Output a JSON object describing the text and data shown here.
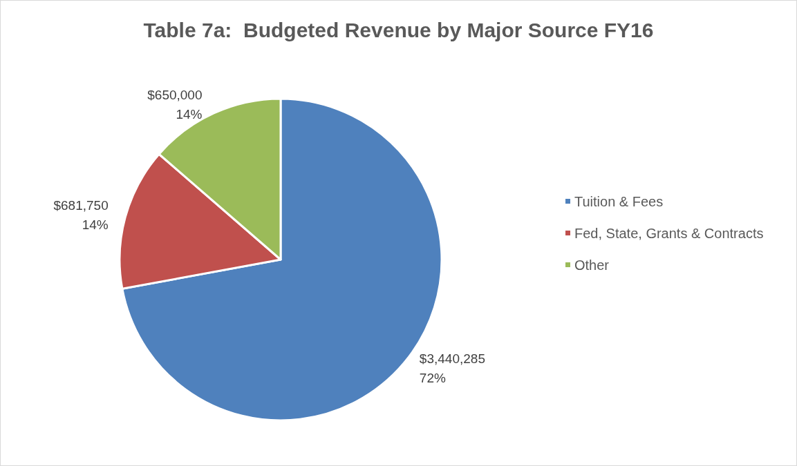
{
  "chart_data": {
    "type": "pie",
    "title": "Table 7a:  Budgeted Revenue by Major Source FY16",
    "categories": [
      "Tuition & Fees",
      "Fed, State, Grants & Contracts",
      "Other"
    ],
    "values": [
      3440285,
      681750,
      650000
    ],
    "colors": [
      "#4f81bd",
      "#c0504d",
      "#9bbb59"
    ],
    "value_labels": [
      "$3,440,285\n72%",
      "$681,750\n14%",
      "$650,000\n14%"
    ],
    "legend": "right"
  }
}
